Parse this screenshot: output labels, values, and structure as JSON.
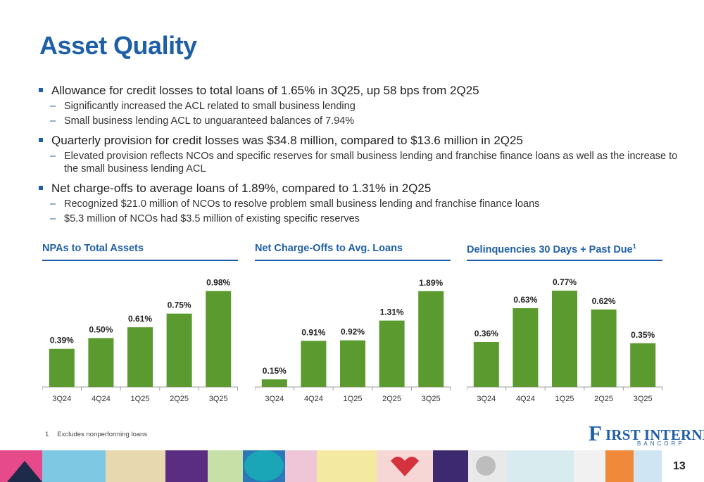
{
  "title": "Asset Quality",
  "bullets": [
    {
      "text": "Allowance for credit losses to total loans of 1.65% in 3Q25, up 58 bps from 2Q25",
      "subs": [
        "Significantly increased the ACL related to small business lending",
        "Small business lending ACL to unguaranteed balances of 7.94%"
      ]
    },
    {
      "text": "Quarterly provision for credit losses was $34.8 million, compared to $13.6 million in 2Q25",
      "subs": [
        "Elevated provision reflects NCOs and specific reserves for small business lending and franchise finance loans as well as the increase to the small business lending ACL"
      ]
    },
    {
      "text": "Net charge-offs to average loans of 1.89%, compared to 1.31% in 2Q25",
      "subs": [
        "Recognized $21.0 million of NCOs to resolve problem small business lending and franchise finance loans",
        "$5.3 million of NCOs had $3.5 million of existing specific reserves"
      ]
    }
  ],
  "colors": {
    "accent": "#1f5fa8",
    "bar": "#5a9a2e",
    "axis": "#9e9e9e"
  },
  "chart_data": [
    {
      "type": "bar",
      "title": "NPAs to Total Assets",
      "categories": [
        "3Q24",
        "4Q24",
        "1Q25",
        "2Q25",
        "3Q25"
      ],
      "values": [
        0.39,
        0.5,
        0.61,
        0.75,
        0.98
      ],
      "labels": [
        "0.39%",
        "0.50%",
        "0.61%",
        "0.75%",
        "0.98%"
      ],
      "ylim": [
        0,
        1.15
      ]
    },
    {
      "type": "bar",
      "title": "Net Charge-Offs to Avg. Loans",
      "categories": [
        "3Q24",
        "4Q24",
        "1Q25",
        "2Q25",
        "3Q25"
      ],
      "values": [
        0.15,
        0.91,
        0.92,
        1.31,
        1.89
      ],
      "labels": [
        "0.15%",
        "0.91%",
        "0.92%",
        "1.31%",
        "1.89%"
      ],
      "ylim": [
        0,
        2.22
      ]
    },
    {
      "type": "bar",
      "title": "Delinquencies 30 Days + Past Due",
      "title_sup": "1",
      "categories": [
        "3Q24",
        "4Q24",
        "1Q25",
        "2Q25",
        "3Q25"
      ],
      "values": [
        0.36,
        0.63,
        0.77,
        0.62,
        0.35
      ],
      "labels": [
        "0.36%",
        "0.63%",
        "0.77%",
        "0.62%",
        "0.35%"
      ],
      "ylim": [
        0,
        0.9
      ]
    }
  ],
  "footnote": {
    "number": "1",
    "text": "Excludes nonperforming loans"
  },
  "logo": {
    "initial": "F",
    "name": "IRST INTERNET",
    "sub": "BANCORP"
  },
  "page_number": "13"
}
